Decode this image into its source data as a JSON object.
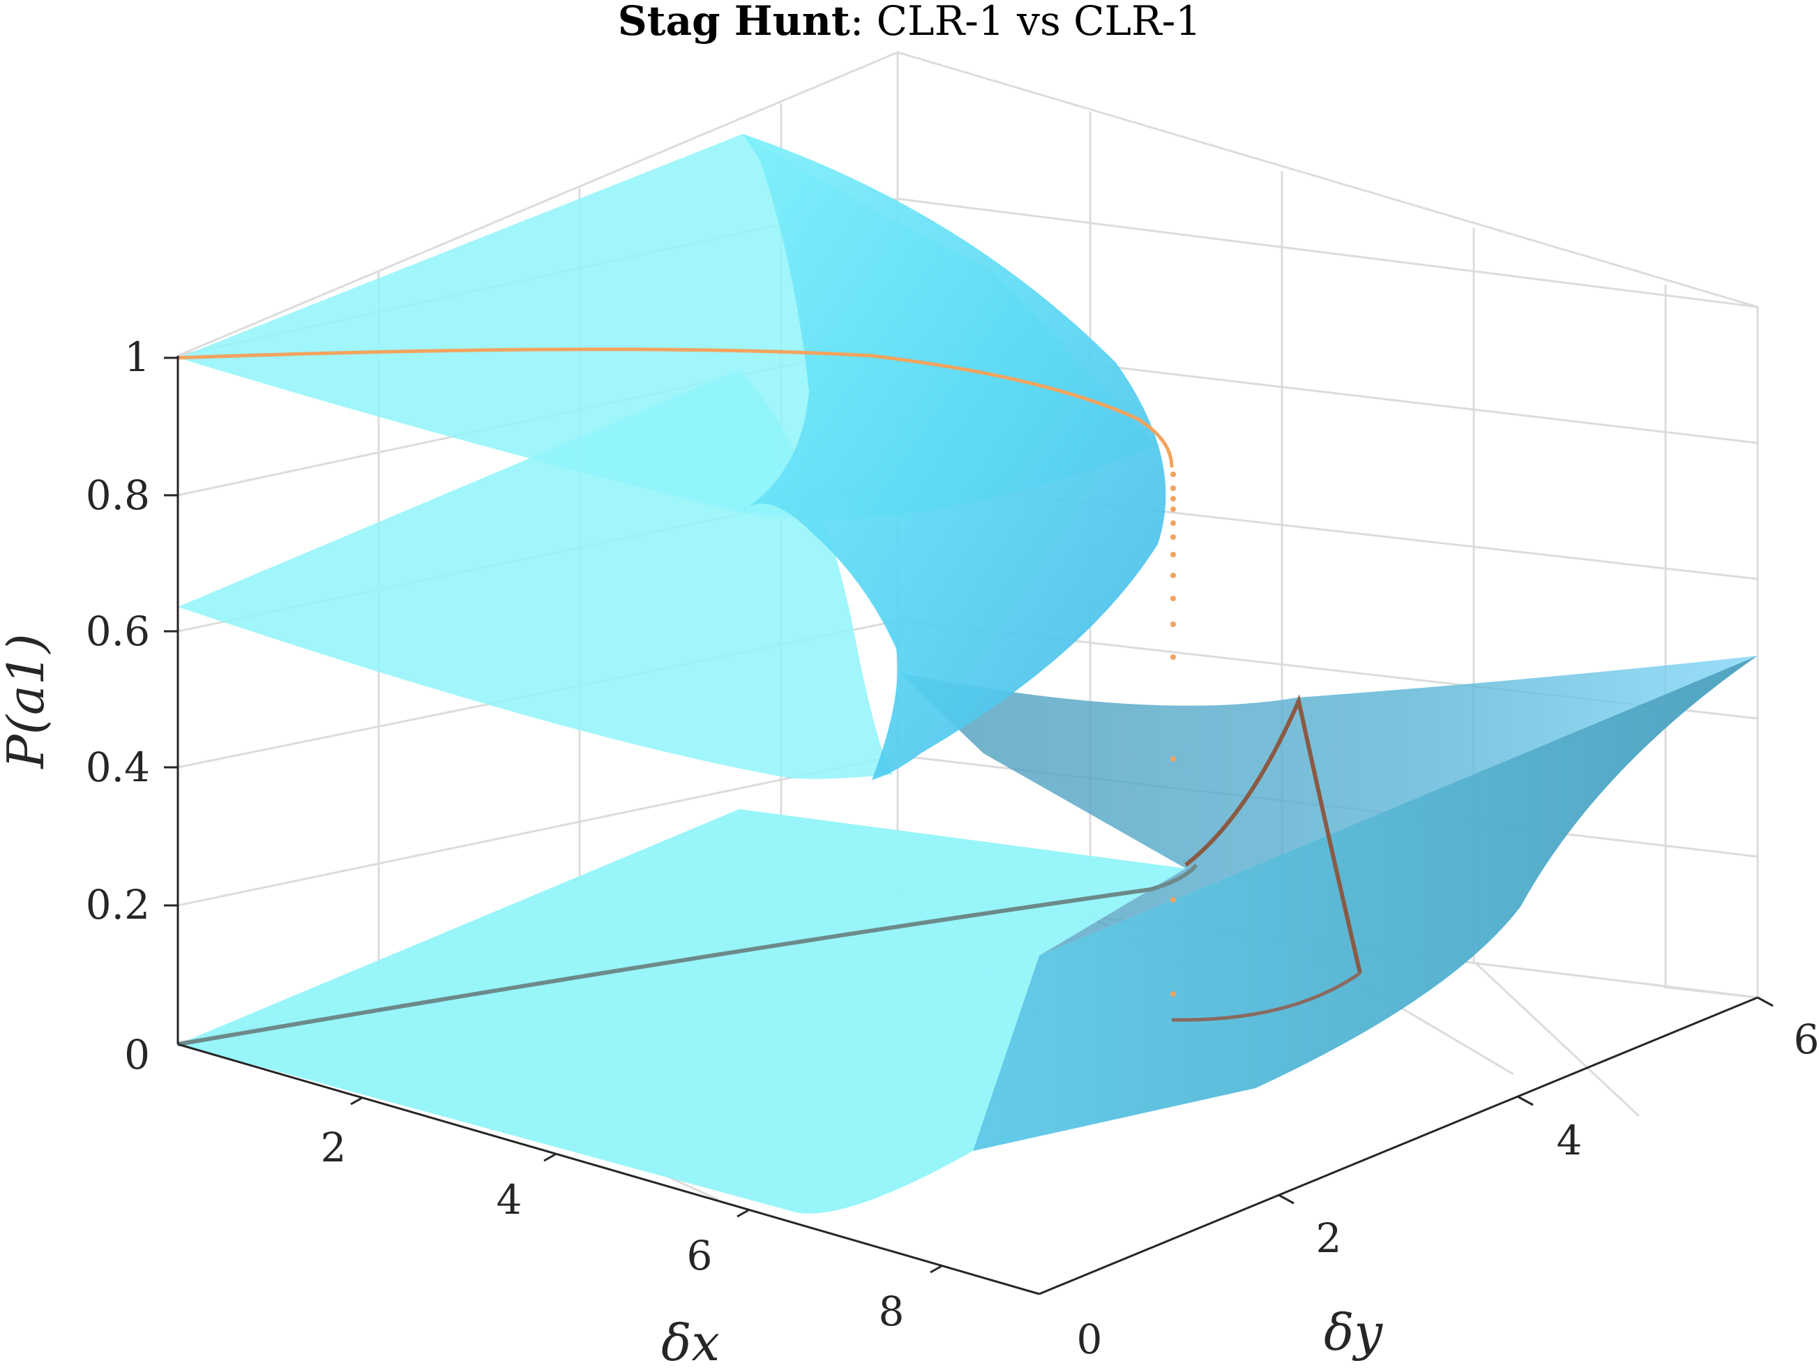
{
  "title": {
    "bold": "Stag Hunt",
    "rest": ": CLR-1 vs CLR-1"
  },
  "colors": {
    "surface_light": "#8ff4fa",
    "surface_mid": "#55d2f0",
    "surface_dark": "#4a9fbd",
    "trajectory_orange": "#f2a35e",
    "trajectory_brown": "#8a5a44",
    "trajectory_gray": "#6c8a8a",
    "grid": "#dcdcdc",
    "axis": "#262626"
  },
  "chart_data": {
    "type": "surface3d",
    "title": "Stag Hunt: CLR-1 vs CLR-1",
    "xlabel": "δx",
    "ylabel": "δy",
    "zlabel": "P(a1)",
    "xlim": [
      0,
      8.8
    ],
    "ylim": [
      0,
      6
    ],
    "zlim": [
      0,
      1.05
    ],
    "xticks": [
      "2",
      "4",
      "6",
      "8"
    ],
    "yticks": [
      "0",
      "2",
      "4",
      "6"
    ],
    "zticks": [
      "0",
      "0.2",
      "0.4",
      "0.6",
      "0.8",
      "1"
    ],
    "grid": true,
    "surface_description": "Equilibrium P(a1) as a function of δx and δy; surface folds over into upper (near 1) and lower (near 0) branches along δx, merging into a single rising branch for larger δy.",
    "trajectory": {
      "upper_branch_z": 0.99,
      "fold_z_range": [
        0.03,
        0.88
      ],
      "lower_branch_start": [
        0.0,
        0.0,
        0.0
      ]
    }
  }
}
